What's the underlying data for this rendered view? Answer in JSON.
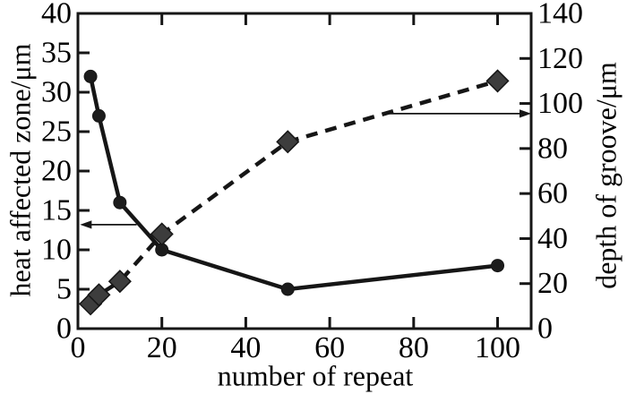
{
  "chart_data": {
    "type": "line",
    "title": "",
    "xlabel": "number of repeat",
    "ylabel_left": "heat affected zone/μm",
    "ylabel_right": "depth of groove/μm",
    "xlim": [
      0,
      108
    ],
    "ylim_left": [
      0,
      40
    ],
    "ylim_right": [
      0,
      140
    ],
    "x_ticks": [
      0,
      20,
      40,
      60,
      80,
      100
    ],
    "left_ticks": [
      0,
      5,
      10,
      15,
      20,
      25,
      30,
      35,
      40
    ],
    "right_ticks": [
      0,
      20,
      40,
      60,
      80,
      100,
      120,
      140
    ],
    "grid": false,
    "legend": "none",
    "series": [
      {
        "name": "heat affected zone",
        "axis": "left",
        "line": "solid",
        "marker": "circle",
        "x": [
          3,
          5,
          10,
          20,
          50,
          100
        ],
        "y": [
          32,
          27,
          16,
          10,
          5,
          8
        ]
      },
      {
        "name": "depth of groove",
        "axis": "right",
        "line": "dashed",
        "marker": "diamond",
        "x": [
          3,
          5,
          10,
          20,
          50,
          100
        ],
        "y": [
          11,
          15,
          21,
          42,
          83,
          110
        ]
      }
    ],
    "annotations": [
      {
        "type": "arrow",
        "points_to": "left-axis",
        "axis": "left",
        "y": 13.2,
        "x_start": 14,
        "x_end": 0.5
      },
      {
        "type": "arrow",
        "points_to": "right-axis",
        "axis": "right",
        "y": 95.5,
        "x_start": 74,
        "x_end": 108
      }
    ],
    "colors": {
      "line": "#161616",
      "circle_fill": "#1c1c1c",
      "diamond_fill": "#3d3d3d",
      "text": "#000000",
      "background": "#ffffff"
    }
  }
}
